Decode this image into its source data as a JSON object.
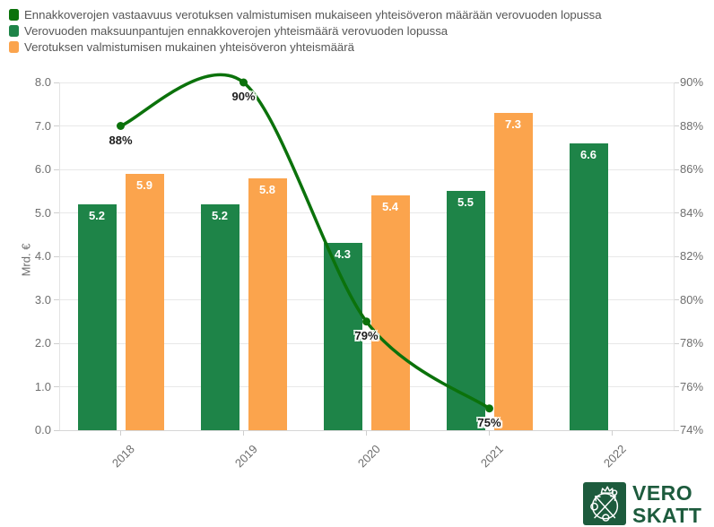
{
  "legend": {
    "items": [
      {
        "label": "Ennakkoverojen vastaavuus verotuksen valmistumisen mukaiseen yhteisöveron määrään verovuoden lopussa",
        "color": "#0b720b"
      },
      {
        "label": "Verovuoden maksuunpantujen ennakkoverojen yhteismäärä verovuoden lopussa",
        "color": "#1e8448"
      },
      {
        "label": "Verotuksen valmistumisen mukainen yhteisöveron yhteismäärä",
        "color": "#fba44d"
      }
    ]
  },
  "chart_data": {
    "type": "combo",
    "categories": [
      "2018",
      "2019",
      "2020",
      "2021",
      "2022"
    ],
    "series": [
      {
        "name": "Ennakkoverojen vastaavuus verotuksen valmistumisen mukaiseen yhteisöveron määrään verovuoden lopussa",
        "type": "line",
        "yaxis": "right",
        "color": "#0b720b",
        "values": [
          88,
          90,
          79,
          75,
          null
        ],
        "labels": [
          "88%",
          "90%",
          "79%",
          "75%",
          null
        ]
      },
      {
        "name": "Verovuoden maksuunpantujen ennakkoverojen yhteismäärä verovuoden lopussa",
        "type": "bar",
        "yaxis": "left",
        "color": "#1e8448",
        "values": [
          5.2,
          5.2,
          4.3,
          5.5,
          6.6
        ],
        "labels": [
          "5.2",
          "5.2",
          "4.3",
          "5.5",
          "6.6"
        ]
      },
      {
        "name": "Verotuksen valmistumisen mukainen yhteisöveron yhteismäärä",
        "type": "bar",
        "yaxis": "left",
        "color": "#fba44d",
        "values": [
          5.9,
          5.8,
          5.4,
          7.3,
          null
        ],
        "labels": [
          "5.9",
          "5.8",
          "5.4",
          "7.3",
          null
        ]
      }
    ],
    "left_axis": {
      "title": "Mrd. €",
      "min": 0,
      "max": 8,
      "ticks": [
        "0.0",
        "1.0",
        "2.0",
        "3.0",
        "4.0",
        "5.0",
        "6.0",
        "7.0",
        "8.0"
      ]
    },
    "right_axis": {
      "min": 74,
      "max": 90,
      "ticks": [
        "74%",
        "76%",
        "78%",
        "80%",
        "82%",
        "84%",
        "86%",
        "88%",
        "90%"
      ]
    },
    "grid": true,
    "legend_position": "top-left"
  },
  "logo": {
    "line1": "VERO",
    "line2": "SKATT",
    "color": "#1d5b3d"
  }
}
